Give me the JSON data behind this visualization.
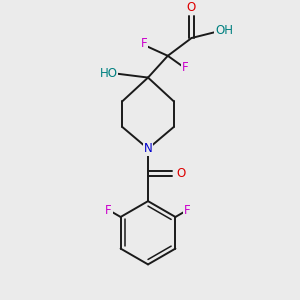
{
  "bg_color": "#ebebeb",
  "bond_color": "#1a1a1a",
  "colors": {
    "O": "#dd0000",
    "N": "#0000cc",
    "F": "#cc00cc",
    "HO": "#008080",
    "C": "#1a1a1a"
  },
  "font_size_atom": 8.5
}
